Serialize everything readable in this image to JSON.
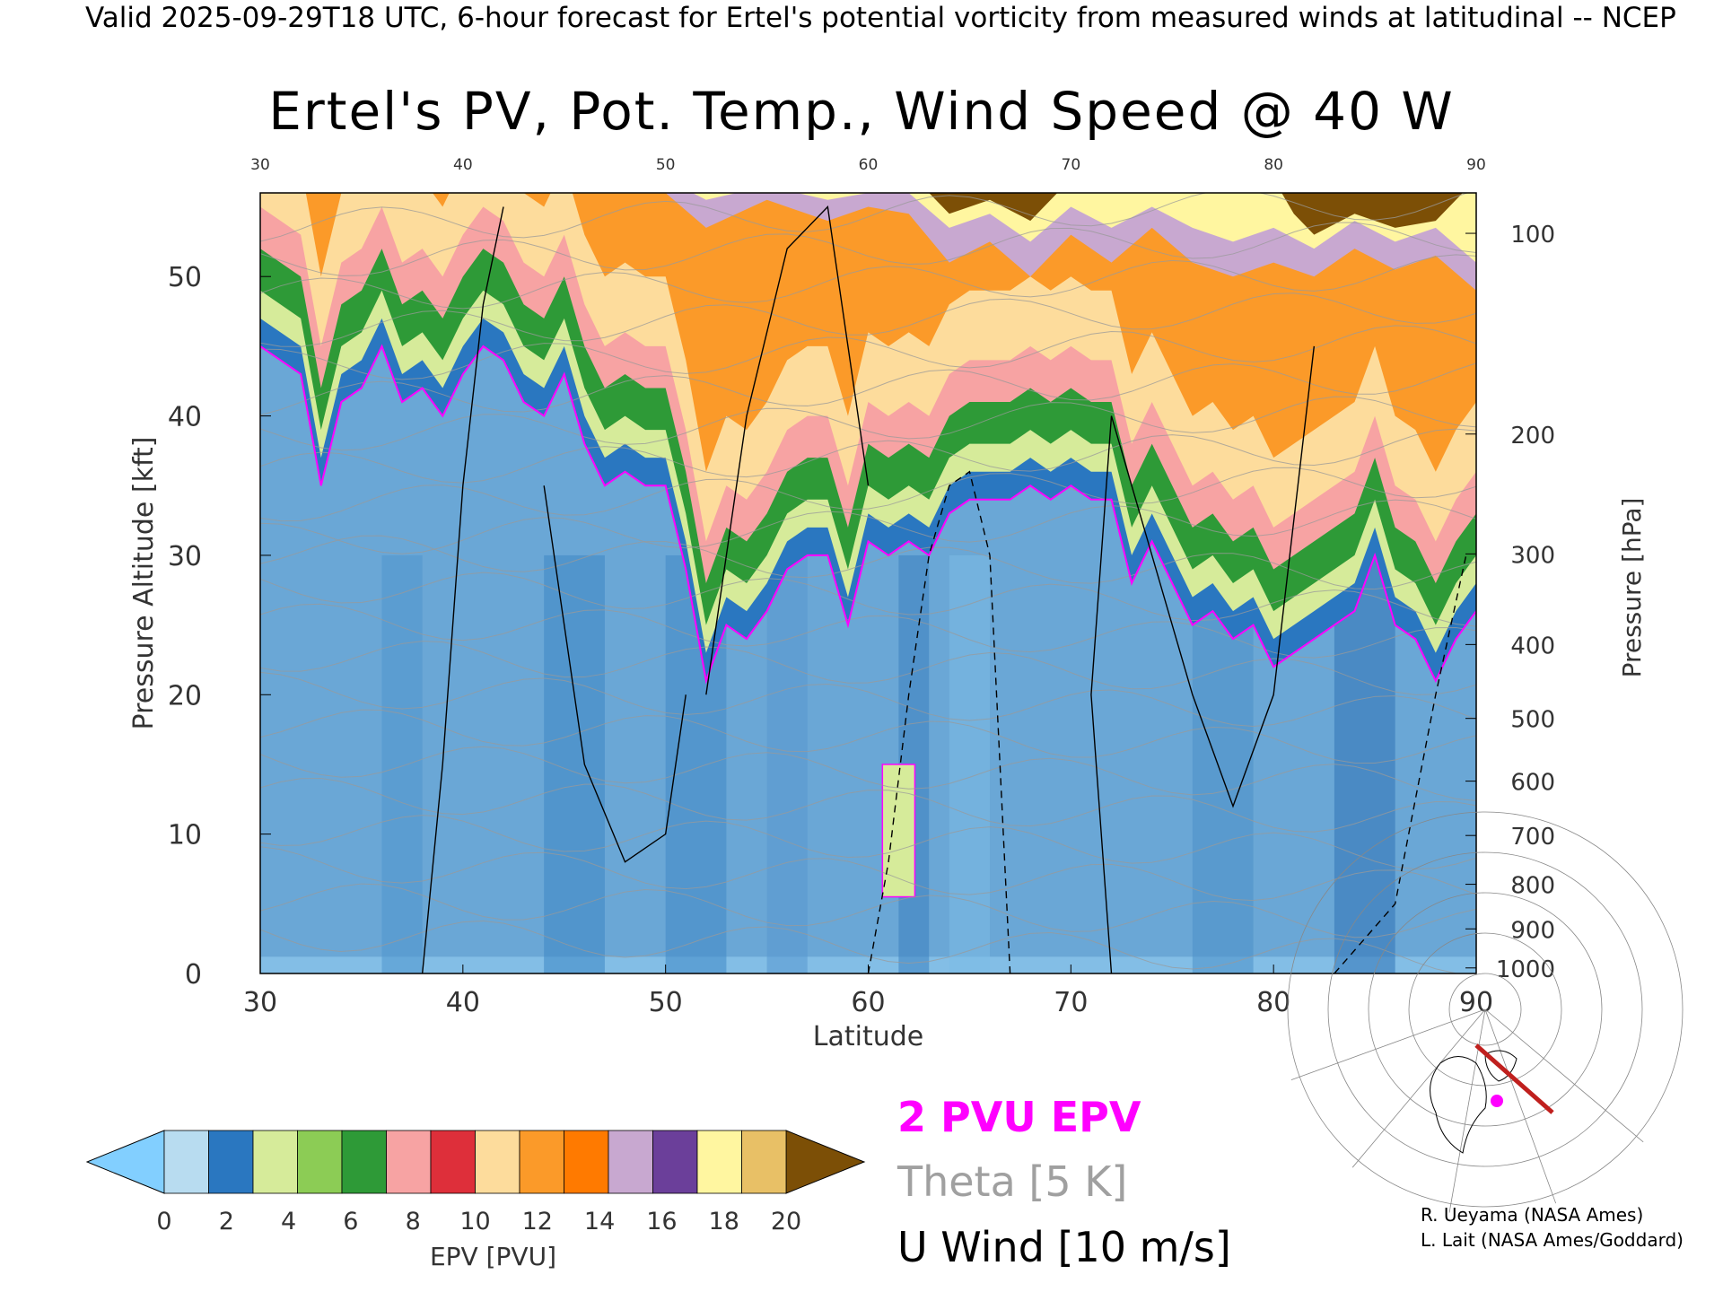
{
  "header": {
    "valid_line": "Valid 2025-09-29T18 UTC, 6-hour forecast for Ertel's potential vorticity from measured winds at latitudinal -- NCEP"
  },
  "chart_data": {
    "type": "heatmap",
    "title": "Ertel's PV, Pot. Temp., Wind Speed @ 40 W",
    "xlabel": "Latitude",
    "ylabel": "Pressure Altitude [kft]",
    "ylabel_right": "Pressure [hPa]",
    "xlim": [
      30,
      90
    ],
    "ylim": [
      0,
      56
    ],
    "x_ticks": [
      30,
      40,
      50,
      60,
      70,
      80,
      90
    ],
    "x_tick_labels": [
      "30",
      "40",
      "50",
      "60",
      "70",
      "80",
      "90"
    ],
    "y_ticks": [
      0,
      10,
      20,
      30,
      40,
      50
    ],
    "y_tick_labels": [
      "0",
      "10",
      "20",
      "30",
      "40",
      "50"
    ],
    "pressure_ticks": [
      {
        "label": "100",
        "kft": 53.1
      },
      {
        "label": "200",
        "kft": 38.7
      },
      {
        "label": "300",
        "kft": 30.1
      },
      {
        "label": "400",
        "kft": 23.6
      },
      {
        "label": "500",
        "kft": 18.3
      },
      {
        "label": "600",
        "kft": 13.8
      },
      {
        "label": "700",
        "kft": 9.9
      },
      {
        "label": "800",
        "kft": 6.4
      },
      {
        "label": "900",
        "kft": 3.2
      },
      {
        "label": "1000",
        "kft": 0.4
      }
    ],
    "pv2_boundary": {
      "label": "2 PVU EPV",
      "color": "#ff00ff",
      "x": [
        30,
        32,
        33,
        34,
        35,
        36,
        37,
        38,
        39,
        40,
        41,
        42,
        43,
        44,
        45,
        46,
        47,
        48,
        49,
        50,
        51,
        52,
        53,
        54,
        55,
        56,
        57,
        58,
        59,
        60,
        61,
        62,
        63,
        64,
        65,
        66,
        67,
        68,
        69,
        70,
        71,
        72,
        73,
        74,
        75,
        76,
        77,
        78,
        79,
        80,
        81,
        82,
        83,
        84,
        85,
        86,
        87,
        88,
        89,
        90
      ],
      "kft": [
        45,
        43,
        35,
        41,
        42,
        45,
        41,
        42,
        40,
        43,
        45,
        44,
        41,
        40,
        43,
        38,
        35,
        36,
        35,
        35,
        29,
        21,
        25,
        24,
        26,
        29,
        30,
        30,
        25,
        31,
        30,
        31,
        30,
        33,
        34,
        34,
        34,
        35,
        34,
        35,
        34,
        34,
        28,
        31,
        28,
        25,
        26,
        24,
        25,
        22,
        23,
        24,
        25,
        26,
        30,
        25,
        24,
        21,
        24,
        26
      ]
    },
    "pv_bands": [
      {
        "above_pv2_kft": 0,
        "pvu": 2
      },
      {
        "above_pv2_kft": 2,
        "pvu": 4
      },
      {
        "above_pv2_kft": 4,
        "pvu": 6
      },
      {
        "above_pv2_kft": 7,
        "pvu": 8
      },
      {
        "above_pv2_kft": 10,
        "pvu": 10
      },
      {
        "above_pv2_kft": 15,
        "pvu": 12
      }
    ],
    "secondary_pv_feature": {
      "lat_range": [
        60.7,
        62.3
      ],
      "kft_range": [
        5.5,
        15
      ],
      "pvu": 3
    },
    "wind_zero_contours": [
      {
        "x": [
          60,
          61,
          62,
          63,
          64,
          65,
          66,
          67
        ],
        "kft": [
          0,
          8,
          20,
          30,
          35,
          36,
          30,
          0
        ]
      },
      {
        "x": [
          83,
          86,
          88,
          89.5
        ],
        "kft": [
          0,
          5,
          20,
          30
        ]
      }
    ],
    "wind_10ms_contours": [
      {
        "x": [
          38,
          39,
          40,
          41,
          42
        ],
        "kft": [
          0,
          15,
          35,
          48,
          55
        ]
      },
      {
        "x": [
          44,
          46,
          48,
          50,
          51
        ],
        "kft": [
          35,
          15,
          8,
          10,
          20
        ]
      },
      {
        "x": [
          52,
          54,
          56,
          58,
          59,
          60
        ],
        "kft": [
          20,
          40,
          52,
          55,
          45,
          35
        ]
      },
      {
        "x": [
          72,
          71,
          72,
          74,
          76,
          78,
          80,
          82
        ],
        "kft": [
          0,
          20,
          40,
          30,
          20,
          12,
          20,
          45
        ]
      }
    ],
    "theta_contour_interval_K": 5,
    "colorbar": {
      "label": "EPV [PVU]",
      "ticks": [
        "0",
        "2",
        "4",
        "6",
        "8",
        "10",
        "12",
        "14",
        "16",
        "18",
        "20"
      ],
      "segment_colors": [
        "#b8dcf0",
        "#2a77c0",
        "#d6eb9a",
        "#8ccc55",
        "#2e9a37",
        "#f7a3a3",
        "#de2f3a",
        "#fddc9c",
        "#fb9a29",
        "#ff7a00",
        "#c8a8d0",
        "#6b3f9a",
        "#fff6a0",
        "#e8c066"
      ],
      "under_color": "#82cfff",
      "over_color": "#7c4f06"
    },
    "legend": [
      {
        "label": "2 PVU EPV",
        "color": "#ff00ff"
      },
      {
        "label": "Theta [5 K]",
        "color": "#a0a0a0"
      },
      {
        "label": "U Wind [10 m/s]",
        "color": "#000000"
      }
    ]
  },
  "credits": {
    "line1": "R. Ueyama (NASA Ames)",
    "line2": "L. Lait (NASA Ames/Goddard)"
  },
  "inset_map": {
    "track_color": "#c0201e",
    "marker_color": "#ff00ff"
  }
}
